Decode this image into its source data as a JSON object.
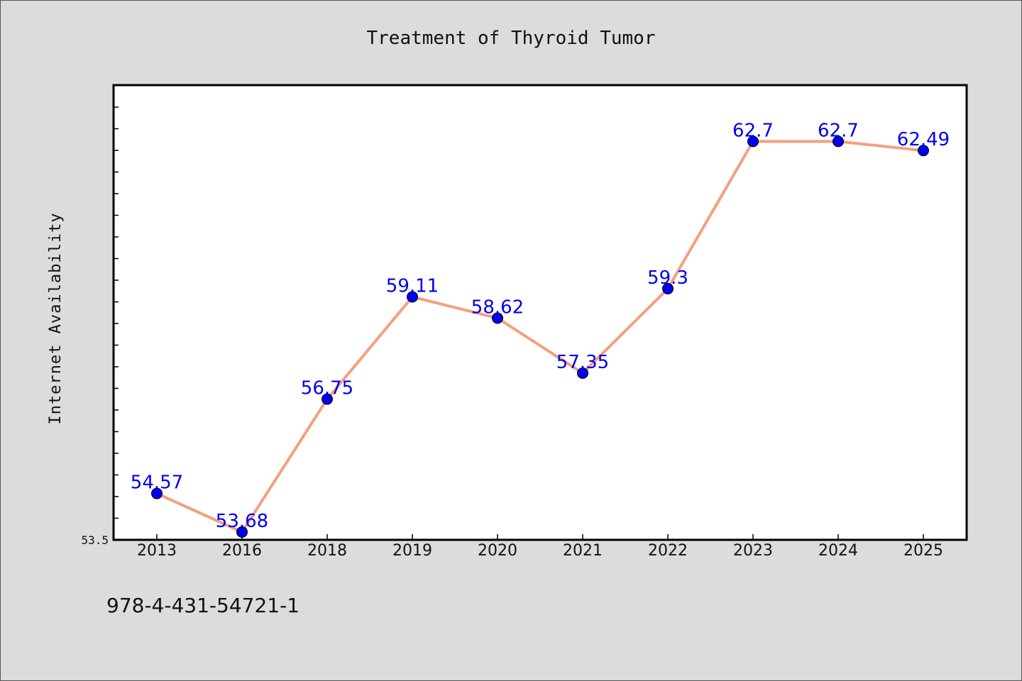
{
  "chart_data": {
    "type": "line",
    "title": "Treatment of Thyroid Tumor",
    "xlabel": "",
    "ylabel": "Internet Availability",
    "categories": [
      "2013",
      "2016",
      "2018",
      "2019",
      "2020",
      "2021",
      "2022",
      "2023",
      "2024",
      "2025"
    ],
    "series": [
      {
        "values": [
          54.57,
          53.68,
          56.75,
          59.11,
          58.62,
          57.35,
          59.3,
          62.7,
          62.7,
          62.49
        ],
        "data_labels": [
          "54.57",
          "53.68",
          "56.75",
          "59.11",
          "58.62",
          "57.35",
          "59.3",
          "62.7",
          "62.7",
          "62.49"
        ]
      }
    ],
    "ylim": [
      53.5,
      64.0
    ],
    "y_tick_label": "53.5",
    "grid": false,
    "colors": {
      "line": "#f4a07e",
      "marker": "#0000ee",
      "label": "#0000ee"
    }
  },
  "footer": {
    "code": "978-4-431-54721-1"
  }
}
